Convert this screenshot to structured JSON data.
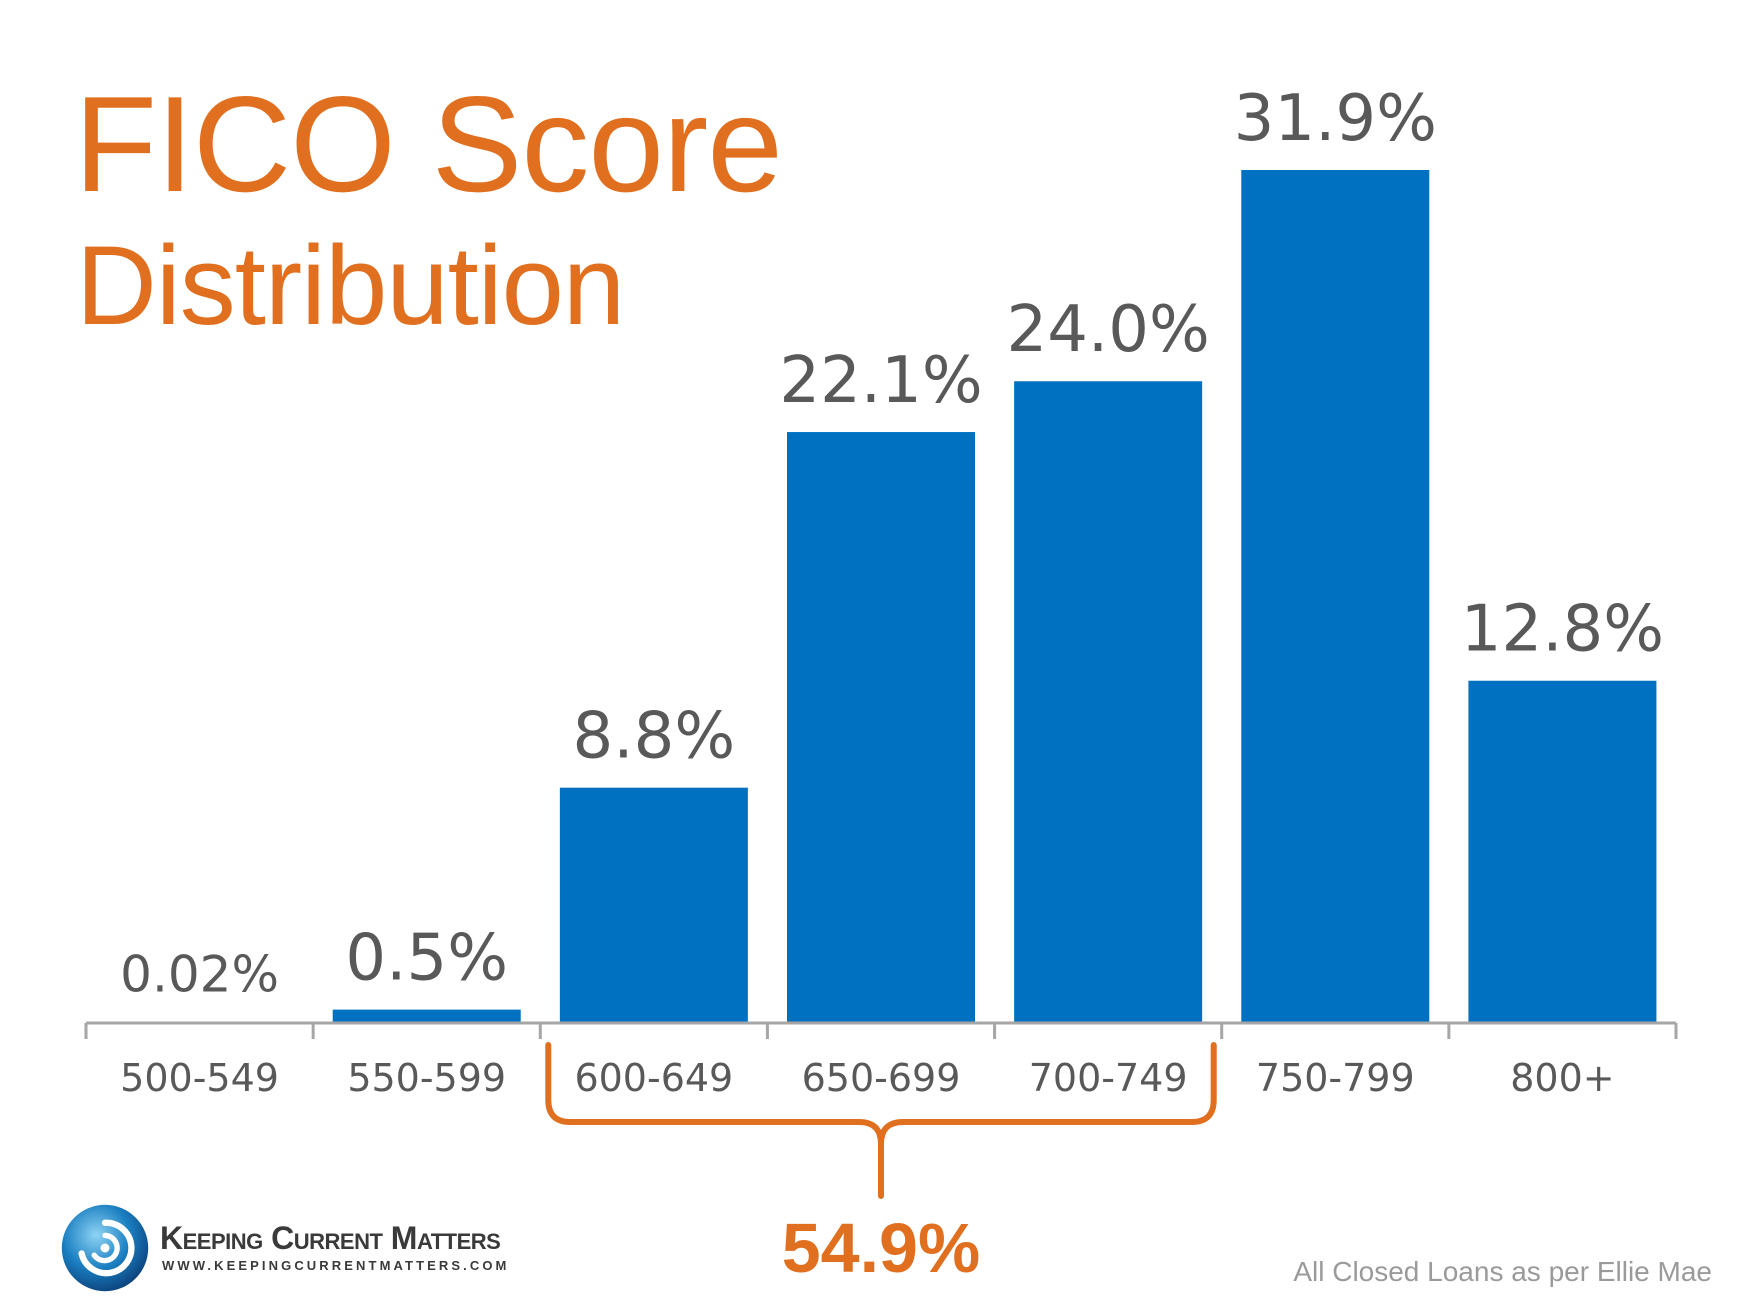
{
  "title_line1": "FICO Score",
  "title_line2": "Distribution",
  "brand": {
    "name": "Keeping Current Matters",
    "url": "WWW.KEEPINGCURRENTMATTERS.COM"
  },
  "source_note": "All Closed Loans as per Ellie Mae",
  "colors": {
    "bar": "#0070c0",
    "accent": "#e07020",
    "label": "#595959"
  },
  "chart_data": {
    "type": "bar",
    "categories": [
      "500-549",
      "550-599",
      "600-649",
      "650-699",
      "700-749",
      "750-799",
      "800+"
    ],
    "values": [
      0.02,
      0.5,
      8.8,
      22.1,
      24.0,
      31.9,
      12.8
    ],
    "data_labels": [
      "0.02%",
      "0.5%",
      "8.8%",
      "22.1%",
      "24.0%",
      "31.9%",
      "12.8%"
    ],
    "ylim": [
      0,
      31.9
    ],
    "grid": false,
    "annotation": {
      "text": "54.9%",
      "range": [
        "600-649",
        "700-749"
      ]
    }
  }
}
